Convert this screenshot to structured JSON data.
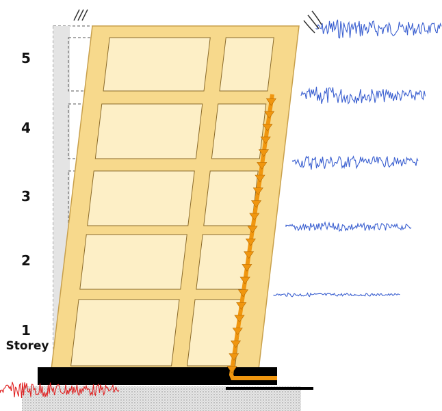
{
  "storeys": {
    "labels": [
      "5",
      "4",
      "3",
      "2",
      "1"
    ],
    "caption": "Storey"
  }
}
